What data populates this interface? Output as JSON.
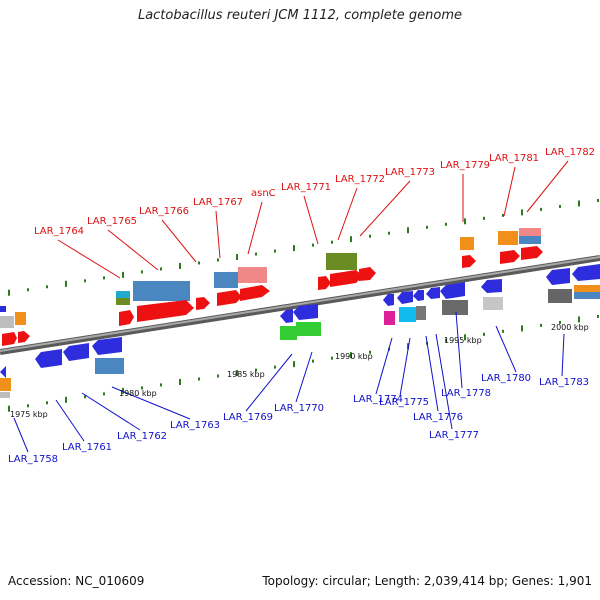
{
  "title": "Lactobacillus reuteri JCM 1112, complete genome",
  "accession": "Accession: NC_010609",
  "summary": "Topology: circular; Length: 2,039,414 bp; Genes: 1,901",
  "colors": {
    "backbone": "#8a8a8a",
    "forward_label": "#dd1111",
    "reverse_label": "#1111cc",
    "tick": "#2f7a1f"
  },
  "scale_labels": [
    "1975 kbp",
    "1980 kbp",
    "1985 kbp",
    "1990 kbp",
    "1995 kbp",
    "2000 kbp"
  ],
  "forward_genes": [
    "LAR_1764",
    "LAR_1765",
    "LAR_1766",
    "LAR_1767",
    "asnC",
    "LAR_1771",
    "LAR_1772",
    "LAR_1773",
    "LAR_1779",
    "LAR_1781",
    "LAR_1782"
  ],
  "reverse_genes": [
    "LAR_1758",
    "LAR_1761",
    "LAR_1762",
    "LAR_1763",
    "LAR_1769",
    "LAR_1770",
    "LAR_1774",
    "LAR_1775",
    "LAR_1776",
    "LAR_1777",
    "LAR_1778",
    "LAR_1780",
    "LAR_1783"
  ]
}
